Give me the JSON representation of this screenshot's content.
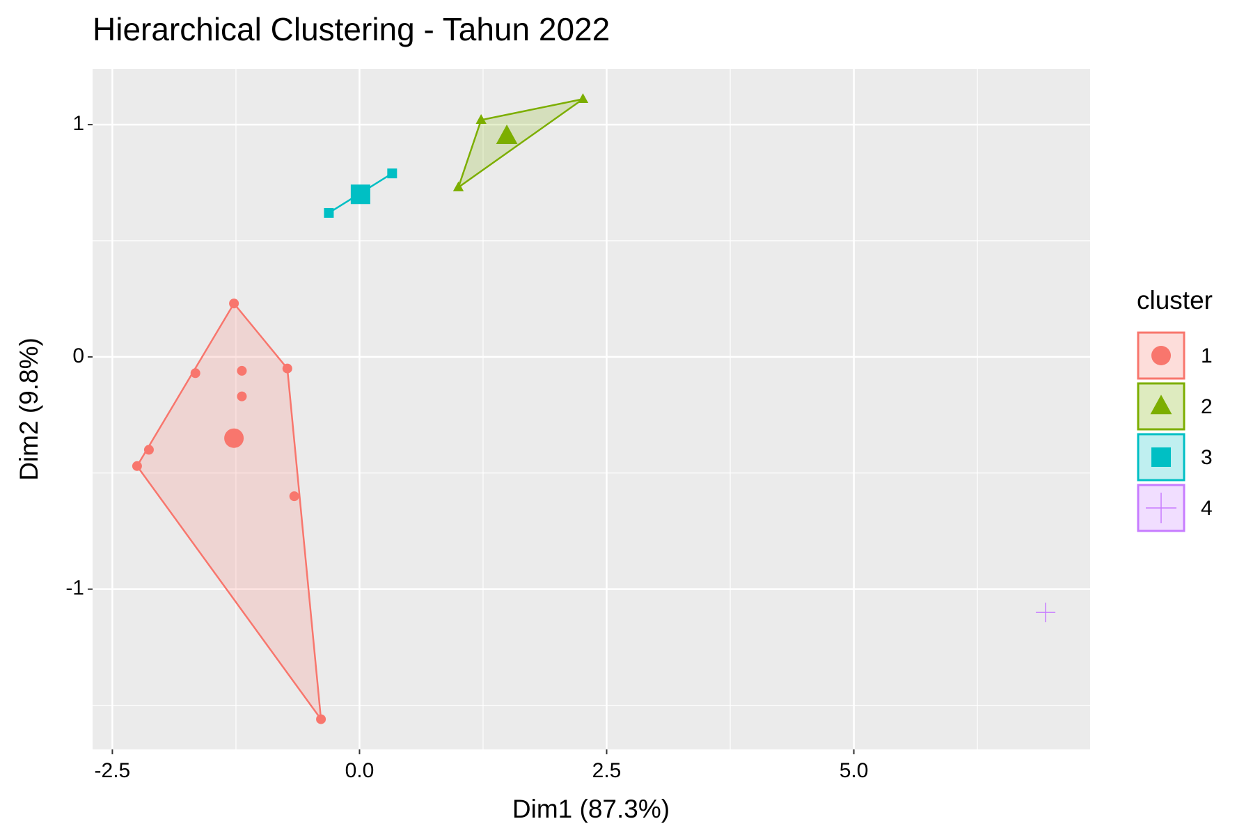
{
  "chart_data": {
    "type": "scatter",
    "title": "Hierarchical Clustering - Tahun 2022",
    "x_label": "Dim1 (87.3%)",
    "y_label": "Dim2 (9.8%)",
    "legend_title": "cluster",
    "legend": "right",
    "grid": true,
    "minor_grid": true,
    "xlim": [
      -2.7,
      7.39
    ],
    "ylim": [
      -1.69,
      1.24
    ],
    "xticks": [
      -2.5,
      {
        "value": 0,
        "label": "0.0"
      },
      2.5,
      {
        "value": 5,
        "label": "5.0"
      }
    ],
    "yticks": [
      -1,
      0,
      1
    ],
    "series": [
      {
        "name": "1",
        "color": "#f8766d",
        "shape": "circle",
        "x": [
          -1.27,
          -1.66,
          -1.19,
          -0.73,
          -1.19,
          -2.13,
          -2.25,
          -0.66,
          -0.39
        ],
        "y": [
          0.23,
          -0.07,
          -0.06,
          -0.05,
          -0.17,
          -0.4,
          -0.47,
          -0.6,
          -1.56
        ],
        "center": [
          -1.27,
          -0.35
        ]
      },
      {
        "name": "2",
        "color": "#7cae00",
        "shape": "triangle",
        "x": [
          1.23,
          2.26,
          1.0
        ],
        "y": [
          1.02,
          1.11,
          0.73
        ],
        "center": [
          1.49,
          0.95
        ]
      },
      {
        "name": "3",
        "color": "#00bfc4",
        "shape": "square",
        "x": [
          -0.31,
          0.33
        ],
        "y": [
          0.62,
          0.79
        ],
        "center": [
          0.01,
          0.7
        ]
      },
      {
        "name": "4",
        "color": "#c77cff",
        "shape": "plus",
        "x": [
          6.94
        ],
        "y": [
          -1.1
        ]
      }
    ]
  }
}
